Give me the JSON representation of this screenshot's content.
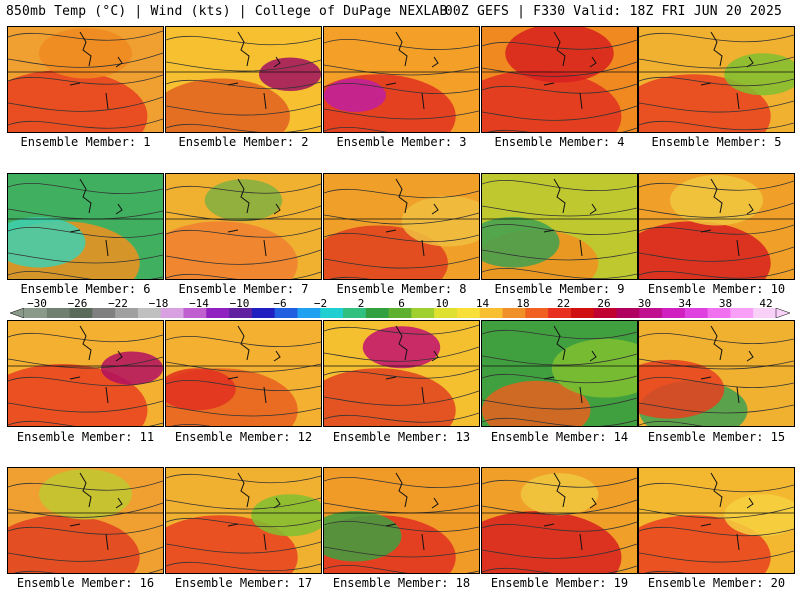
{
  "header": {
    "title_left": "850mb Temp (°C) | Wind (kts) | College of DuPage NEXLAB",
    "title_right": "00Z GEFS | F330 Valid: 18Z FRI JUN 20 2025"
  },
  "panels": [
    {
      "label": "Ensemble Member: 1",
      "bg": "#f0a030",
      "blobs": [
        [
          "#e84020",
          0.55
        ],
        [
          "#f08a20",
          0.3
        ]
      ]
    },
    {
      "label": "Ensemble Member: 2",
      "bg": "#f6c030",
      "blobs": [
        [
          "#e06020",
          0.45
        ],
        [
          "#a01060",
          0.2
        ]
      ]
    },
    {
      "label": "Ensemble Member: 3",
      "bg": "#f4a028",
      "blobs": [
        [
          "#e03020",
          0.5
        ],
        [
          "#c020a0",
          0.2
        ]
      ]
    },
    {
      "label": "Ensemble Member: 4",
      "bg": "#f08a20",
      "blobs": [
        [
          "#e03020",
          0.55
        ],
        [
          "#d82020",
          0.35
        ]
      ]
    },
    {
      "label": "Ensemble Member: 5",
      "bg": "#f0b030",
      "blobs": [
        [
          "#e84020",
          0.5
        ],
        [
          "#80c030",
          0.25
        ]
      ]
    },
    {
      "label": "Ensemble Member: 6",
      "bg": "#40b060",
      "blobs": [
        [
          "#f09020",
          0.5
        ],
        [
          "#40d0b0",
          0.3
        ]
      ]
    },
    {
      "label": "Ensemble Member: 7",
      "bg": "#f0b030",
      "blobs": [
        [
          "#f08030",
          0.5
        ],
        [
          "#80b040",
          0.25
        ]
      ]
    },
    {
      "label": "Ensemble Member: 8",
      "bg": "#f0a028",
      "blobs": [
        [
          "#e04020",
          0.45
        ],
        [
          "#f0c040",
          0.3
        ]
      ]
    },
    {
      "label": "Ensemble Member: 9",
      "bg": "#c0c830",
      "blobs": [
        [
          "#f09020",
          0.4
        ],
        [
          "#40a050",
          0.3
        ]
      ]
    },
    {
      "label": "Ensemble Member: 10",
      "bg": "#f0a028",
      "blobs": [
        [
          "#d82020",
          0.5
        ],
        [
          "#f0c840",
          0.3
        ]
      ]
    },
    {
      "label": "Ensemble Member: 11",
      "bg": "#f4b030",
      "blobs": [
        [
          "#e84020",
          0.55
        ],
        [
          "#b01060",
          0.2
        ]
      ]
    },
    {
      "label": "Ensemble Member: 12",
      "bg": "#f4b030",
      "blobs": [
        [
          "#e86020",
          0.5
        ],
        [
          "#e03020",
          0.25
        ]
      ]
    },
    {
      "label": "Ensemble Member: 13",
      "bg": "#f4c030",
      "blobs": [
        [
          "#e04020",
          0.5
        ],
        [
          "#c01070",
          0.25
        ]
      ]
    },
    {
      "label": "Ensemble Member: 14",
      "bg": "#40a040",
      "blobs": [
        [
          "#e86020",
          0.35
        ],
        [
          "#80c030",
          0.35
        ]
      ]
    },
    {
      "label": "Ensemble Member: 15",
      "bg": "#f0b030",
      "blobs": [
        [
          "#40a050",
          0.35
        ],
        [
          "#e84020",
          0.35
        ]
      ]
    },
    {
      "label": "Ensemble Member: 16",
      "bg": "#f0a030",
      "blobs": [
        [
          "#e04020",
          0.5
        ],
        [
          "#c0c830",
          0.3
        ]
      ]
    },
    {
      "label": "Ensemble Member: 17",
      "bg": "#f0b030",
      "blobs": [
        [
          "#e84020",
          0.5
        ],
        [
          "#80c030",
          0.25
        ]
      ]
    },
    {
      "label": "Ensemble Member: 18",
      "bg": "#f09a28",
      "blobs": [
        [
          "#e03020",
          0.5
        ],
        [
          "#40a040",
          0.3
        ]
      ]
    },
    {
      "label": "Ensemble Member: 19",
      "bg": "#f0a028",
      "blobs": [
        [
          "#d82020",
          0.55
        ],
        [
          "#f0c840",
          0.25
        ]
      ]
    },
    {
      "label": "Ensemble Member: 20",
      "bg": "#f4b830",
      "blobs": [
        [
          "#e84020",
          0.5
        ],
        [
          "#f4d040",
          0.25
        ]
      ]
    }
  ],
  "colorbar": {
    "labels": [
      "−30",
      "−26",
      "−22",
      "−18",
      "−14",
      "−10",
      "−6",
      "−2",
      "2",
      "6",
      "10",
      "14",
      "18",
      "22",
      "26",
      "30",
      "34",
      "38",
      "42"
    ],
    "colors": [
      "#8a9a8a",
      "#6f7f70",
      "#5a6a5b",
      "#808080",
      "#a0a0a0",
      "#c0c0c0",
      "#d8a0e0",
      "#c060d0",
      "#9020c0",
      "#6020a0",
      "#2020c0",
      "#2060e0",
      "#20a0f0",
      "#20d0d0",
      "#30c080",
      "#30a040",
      "#60b030",
      "#a0d030",
      "#e0e030",
      "#f8e038",
      "#f8c030",
      "#f09028",
      "#f06020",
      "#e83020",
      "#d01010",
      "#c00030",
      "#b00060",
      "#c01090",
      "#d020c0",
      "#e040e0",
      "#f070f0",
      "#f8a0f8",
      "#f8d0f8"
    ]
  }
}
